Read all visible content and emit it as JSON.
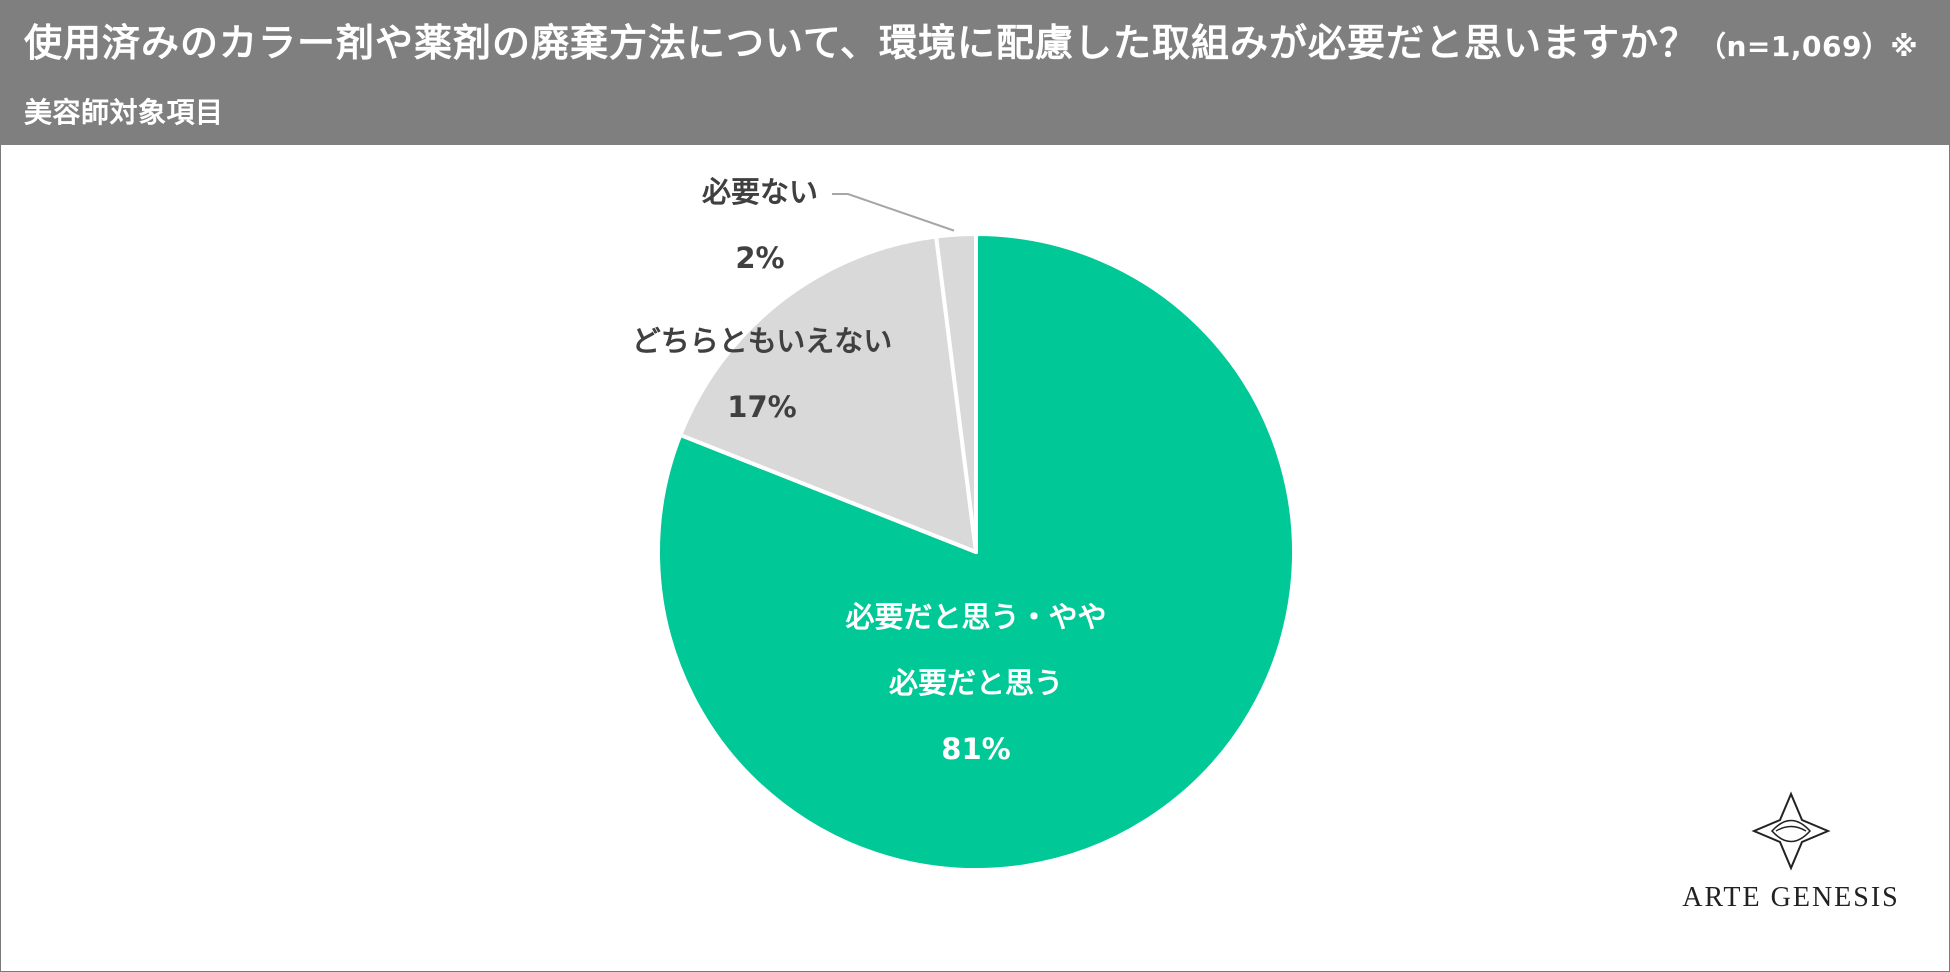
{
  "header": {
    "title_main": "使用済みのカラー剤や薬剤の廃棄方法について、環境に配慮した取組みが必要だと思いますか？",
    "title_sub": "（n=1,069）※美容師対象項目"
  },
  "chart_data": {
    "type": "pie",
    "title": "使用済みのカラー剤や薬剤の廃棄方法について、環境に配慮した取組みが必要だと思いますか？（n=1,069）※美容師対象項目",
    "slices": [
      {
        "label": "必要だと思う・やや必要だと思う",
        "label_lines": [
          "必要だと思う・やや",
          "必要だと思う"
        ],
        "value": 81,
        "value_label": "81%",
        "color": "#00c896"
      },
      {
        "label": "どちらともいえない",
        "label_lines": [
          "どちらともいえない"
        ],
        "value": 17,
        "value_label": "17%",
        "color": "#d9d9d9"
      },
      {
        "label": "必要ない",
        "label_lines": [
          "必要ない"
        ],
        "value": 2,
        "value_label": "2%",
        "color": "#d9d9d9"
      }
    ],
    "start_angle_deg": 0,
    "direction": "clockwise"
  },
  "logo": {
    "text": "ARTE GENESIS",
    "icon": "arte-genesis-logo-icon"
  },
  "colors": {
    "header_bg": "#7f7f7f",
    "accent": "#00c896",
    "neutral": "#d9d9d9"
  }
}
